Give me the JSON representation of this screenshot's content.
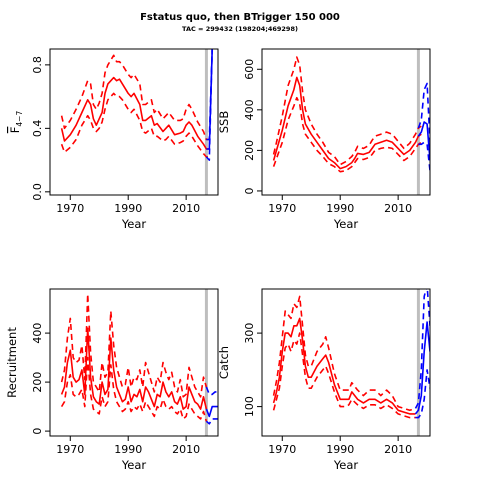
{
  "figure": {
    "title": "Fstatus quo, then BTrigger 150 000",
    "subtitle": "TAC = 299432 (198204;469298)"
  },
  "colors": {
    "historical": "#ff0000",
    "projection": "#0000ff",
    "marker": "#bebebe"
  },
  "chart_data": [
    {
      "type": "line",
      "panel": "F",
      "xlabel": "Year",
      "ylabel_main": "F",
      "ylabel_sub": "4−7",
      "xlim": [
        1963,
        2021
      ],
      "ylim": [
        -0.02,
        0.9
      ],
      "xticks": [
        1970,
        1990,
        2010
      ],
      "yticks": [
        0.0,
        0.4,
        0.8
      ],
      "ytick_labels": [
        "0.0",
        "0.4",
        "0.8"
      ],
      "marker_x": 2017,
      "historical": {
        "x": [
          1967,
          1968,
          1970,
          1972,
          1974,
          1976,
          1977,
          1978,
          1979,
          1980,
          1981,
          1982,
          1983,
          1985,
          1986,
          1987,
          1988,
          1990,
          1991,
          1992,
          1994,
          1995,
          1996,
          1998,
          1999,
          2000,
          2002,
          2003,
          2004,
          2006,
          2008,
          2009,
          2010,
          2011,
          2012,
          2014,
          2016,
          2017,
          2018
        ],
        "mid": [
          0.4,
          0.32,
          0.36,
          0.42,
          0.5,
          0.58,
          0.55,
          0.46,
          0.42,
          0.46,
          0.5,
          0.62,
          0.68,
          0.72,
          0.7,
          0.71,
          0.68,
          0.62,
          0.6,
          0.62,
          0.55,
          0.45,
          0.45,
          0.48,
          0.42,
          0.43,
          0.38,
          0.4,
          0.42,
          0.36,
          0.37,
          0.38,
          0.42,
          0.44,
          0.42,
          0.35,
          0.3,
          0.27,
          0.27
        ],
        "low": [
          0.3,
          0.25,
          0.28,
          0.33,
          0.42,
          0.48,
          0.45,
          0.4,
          0.38,
          0.4,
          0.44,
          0.52,
          0.58,
          0.62,
          0.6,
          0.6,
          0.58,
          0.52,
          0.5,
          0.52,
          0.45,
          0.38,
          0.37,
          0.4,
          0.35,
          0.35,
          0.32,
          0.33,
          0.35,
          0.3,
          0.31,
          0.32,
          0.35,
          0.37,
          0.35,
          0.29,
          0.24,
          0.22,
          0.22
        ],
        "high": [
          0.48,
          0.4,
          0.45,
          0.52,
          0.6,
          0.7,
          0.68,
          0.55,
          0.52,
          0.56,
          0.62,
          0.75,
          0.8,
          0.86,
          0.82,
          0.82,
          0.8,
          0.74,
          0.72,
          0.74,
          0.68,
          0.55,
          0.55,
          0.58,
          0.5,
          0.52,
          0.46,
          0.48,
          0.5,
          0.45,
          0.45,
          0.46,
          0.52,
          0.55,
          0.52,
          0.44,
          0.38,
          0.33,
          0.33
        ]
      },
      "projection": {
        "x": [
          2017,
          2018,
          2019
        ],
        "mid": [
          0.27,
          0.27,
          0.9
        ],
        "low": [
          0.22,
          0.2,
          0.9
        ],
        "high": [
          0.33,
          0.33,
          0.9
        ]
      }
    },
    {
      "type": "line",
      "panel": "SSB",
      "xlabel": "Year",
      "ylabel": "SSB",
      "xlim": [
        1963,
        2021
      ],
      "ylim": [
        -20,
        700
      ],
      "xticks": [
        1970,
        1990,
        2010
      ],
      "yticks": [
        0,
        200,
        400,
        600
      ],
      "ytick_labels": [
        "0",
        "200",
        "400",
        "600"
      ],
      "marker_x": 2017,
      "historical": {
        "x": [
          1967,
          1968,
          1970,
          1972,
          1974,
          1975,
          1976,
          1977,
          1978,
          1980,
          1982,
          1984,
          1986,
          1988,
          1990,
          1992,
          1994,
          1995,
          1996,
          1998,
          2000,
          2001,
          2002,
          2004,
          2006,
          2008,
          2010,
          2012,
          2014,
          2016,
          2017,
          2018
        ],
        "mid": [
          150,
          200,
          300,
          420,
          500,
          560,
          520,
          400,
          330,
          280,
          240,
          200,
          160,
          140,
          110,
          120,
          140,
          160,
          185,
          180,
          190,
          210,
          230,
          240,
          250,
          240,
          210,
          180,
          200,
          240,
          270,
          280
        ],
        "low": [
          120,
          160,
          240,
          350,
          420,
          460,
          430,
          330,
          280,
          240,
          200,
          170,
          135,
          120,
          95,
          100,
          120,
          140,
          160,
          155,
          165,
          180,
          200,
          210,
          215,
          210,
          180,
          150,
          170,
          210,
          230,
          240
        ],
        "high": [
          180,
          240,
          370,
          520,
          600,
          660,
          620,
          490,
          400,
          330,
          280,
          240,
          190,
          170,
          130,
          145,
          170,
          190,
          220,
          210,
          225,
          250,
          270,
          280,
          290,
          280,
          245,
          210,
          235,
          280,
          310,
          320
        ]
      },
      "projection": {
        "x": [
          2017,
          2018,
          2019,
          2020,
          2021
        ],
        "mid": [
          270,
          290,
          340,
          330,
          150
        ],
        "low": [
          230,
          230,
          240,
          230,
          100
        ],
        "high": [
          310,
          350,
          500,
          530,
          240
        ]
      }
    },
    {
      "type": "line",
      "panel": "Recruitment",
      "xlabel": "Year",
      "ylabel": "Recruitment",
      "xlim": [
        1963,
        2021
      ],
      "ylim": [
        -20,
        580
      ],
      "xticks": [
        1970,
        1990,
        2010
      ],
      "yticks": [
        0,
        200,
        400
      ],
      "ytick_labels": [
        "0",
        "200",
        "400"
      ],
      "marker_x": 2017,
      "historical": {
        "x": [
          1967,
          1968,
          1969,
          1970,
          1971,
          1972,
          1973,
          1974,
          1975,
          1976,
          1977,
          1978,
          1979,
          1980,
          1981,
          1982,
          1983,
          1984,
          1985,
          1986,
          1987,
          1988,
          1989,
          1990,
          1991,
          1992,
          1993,
          1994,
          1995,
          1996,
          1997,
          1998,
          1999,
          2000,
          2001,
          2002,
          2003,
          2004,
          2005,
          2006,
          2007,
          2008,
          2009,
          2010,
          2011,
          2012,
          2013,
          2014,
          2015,
          2016,
          2017
        ],
        "mid": [
          150,
          180,
          280,
          330,
          220,
          200,
          210,
          250,
          150,
          420,
          220,
          140,
          120,
          110,
          200,
          150,
          170,
          380,
          250,
          180,
          150,
          120,
          130,
          180,
          120,
          150,
          140,
          170,
          120,
          180,
          160,
          130,
          100,
          150,
          140,
          200,
          160,
          140,
          160,
          120,
          110,
          140,
          90,
          100,
          180,
          150,
          120,
          110,
          90,
          140,
          90
        ],
        "low": [
          100,
          120,
          200,
          230,
          150,
          140,
          150,
          170,
          100,
          300,
          150,
          90,
          80,
          70,
          140,
          100,
          120,
          270,
          170,
          120,
          100,
          80,
          90,
          120,
          80,
          100,
          90,
          110,
          80,
          120,
          100,
          80,
          60,
          100,
          90,
          130,
          100,
          90,
          100,
          80,
          70,
          90,
          50,
          60,
          110,
          90,
          70,
          60,
          50,
          80,
          40
        ],
        "high": [
          200,
          250,
          380,
          460,
          300,
          280,
          290,
          350,
          210,
          560,
          320,
          200,
          180,
          160,
          280,
          220,
          240,
          490,
          350,
          260,
          220,
          180,
          190,
          260,
          180,
          220,
          210,
          250,
          180,
          280,
          240,
          200,
          160,
          220,
          200,
          280,
          240,
          210,
          240,
          180,
          160,
          210,
          140,
          150,
          260,
          220,
          180,
          160,
          140,
          220,
          180
        ]
      },
      "projection": {
        "x": [
          2017,
          2018,
          2019,
          2020,
          2021
        ],
        "mid": [
          90,
          60,
          100,
          100,
          100
        ],
        "low": [
          40,
          30,
          50,
          50,
          50
        ],
        "high": [
          180,
          150,
          150,
          160,
          160
        ]
      }
    },
    {
      "type": "line",
      "panel": "Catch",
      "xlabel": "Year",
      "ylabel": "Catch",
      "xlim": [
        1963,
        2021
      ],
      "ylim": [
        20,
        420
      ],
      "xticks": [
        1970,
        1990,
        2010
      ],
      "yticks": [
        100,
        300
      ],
      "ytick_labels": [
        "100",
        "300"
      ],
      "marker_x": 2017,
      "historical": {
        "x": [
          1967,
          1968,
          1969,
          1970,
          1971,
          1972,
          1973,
          1974,
          1975,
          1976,
          1977,
          1978,
          1979,
          1980,
          1982,
          1984,
          1985,
          1986,
          1988,
          1990,
          1992,
          1993,
          1994,
          1996,
          1998,
          2000,
          2002,
          2004,
          2006,
          2008,
          2010,
          2012,
          2014,
          2016
        ],
        "mid": [
          110,
          140,
          180,
          250,
          300,
          300,
          290,
          320,
          320,
          340,
          280,
          210,
          180,
          180,
          210,
          230,
          240,
          220,
          160,
          120,
          120,
          120,
          140,
          120,
          110,
          120,
          120,
          110,
          120,
          110,
          90,
          85,
          80,
          80
        ],
        "low": [
          90,
          120,
          150,
          210,
          260,
          270,
          250,
          280,
          270,
          300,
          240,
          180,
          150,
          150,
          180,
          200,
          210,
          190,
          140,
          100,
          100,
          105,
          120,
          105,
          95,
          105,
          105,
          95,
          105,
          95,
          80,
          75,
          70,
          70
        ],
        "high": [
          130,
          170,
          220,
          290,
          360,
          350,
          340,
          380,
          370,
          400,
          320,
          240,
          210,
          210,
          250,
          270,
          290,
          260,
          190,
          145,
          145,
          145,
          165,
          145,
          130,
          145,
          145,
          130,
          145,
          130,
          100,
          95,
          90,
          95
        ]
      },
      "projection": {
        "x": [
          2016,
          2017,
          2018,
          2019,
          2020,
          2021
        ],
        "mid": [
          80,
          90,
          130,
          250,
          330,
          250
        ],
        "low": [
          70,
          70,
          80,
          120,
          200,
          150
        ],
        "high": [
          95,
          110,
          200,
          400,
          430,
          320
        ]
      }
    }
  ]
}
